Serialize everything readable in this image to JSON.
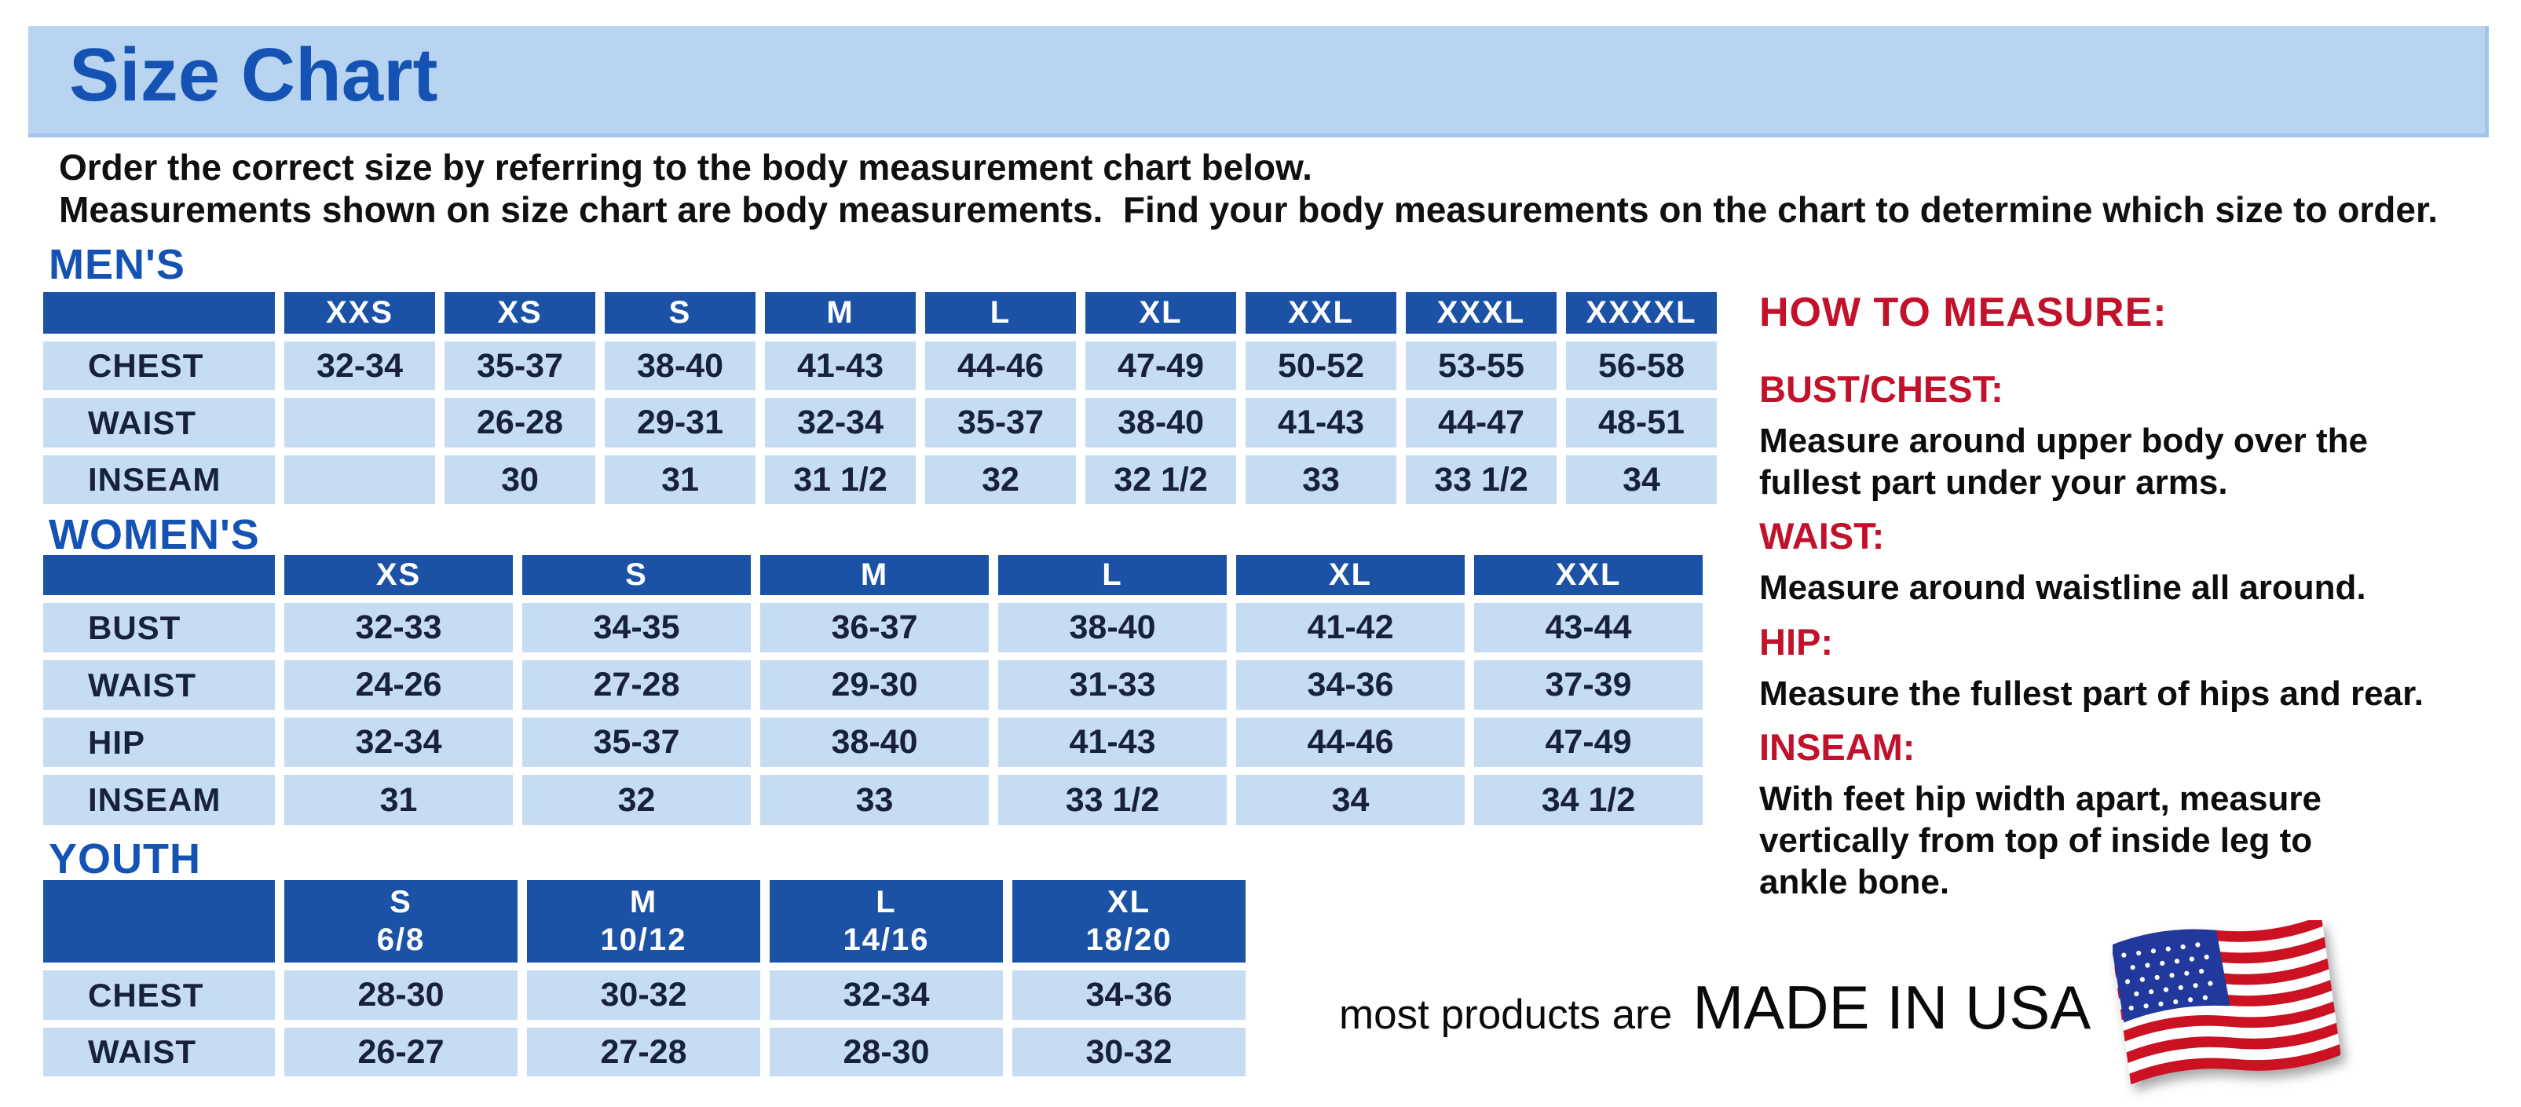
{
  "page": {
    "title": "Size Chart",
    "intro": [
      "Order the correct size by referring to the body measurement chart below.",
      "Measurements shown on size chart are body measurements.  Find your body measurements on the chart to determine which size to order."
    ]
  },
  "tables": {
    "mens": {
      "heading": "MEN'S",
      "columns": [
        "XXS",
        "XS",
        "S",
        "M",
        "L",
        "XL",
        "XXL",
        "XXXL",
        "XXXXL"
      ],
      "rows": [
        {
          "label": "CHEST",
          "values": [
            "32-34",
            "35-37",
            "38-40",
            "41-43",
            "44-46",
            "47-49",
            "50-52",
            "53-55",
            "56-58"
          ]
        },
        {
          "label": "WAIST",
          "values": [
            "",
            "26-28",
            "29-31",
            "32-34",
            "35-37",
            "38-40",
            "41-43",
            "44-47",
            "48-51"
          ]
        },
        {
          "label": "INSEAM",
          "values": [
            "",
            "30",
            "31",
            "31 1/2",
            "32",
            "32 1/2",
            "33",
            "33 1/2",
            "34"
          ]
        }
      ]
    },
    "womens": {
      "heading": "WOMEN'S",
      "columns": [
        "XS",
        "S",
        "M",
        "L",
        "XL",
        "XXL"
      ],
      "rows": [
        {
          "label": "BUST",
          "values": [
            "32-33",
            "34-35",
            "36-37",
            "38-40",
            "41-42",
            "43-44"
          ]
        },
        {
          "label": "WAIST",
          "values": [
            "24-26",
            "27-28",
            "29-30",
            "31-33",
            "34-36",
            "37-39"
          ]
        },
        {
          "label": "HIP",
          "values": [
            "32-34",
            "35-37",
            "38-40",
            "41-43",
            "44-46",
            "47-49"
          ]
        },
        {
          "label": "INSEAM",
          "values": [
            "31",
            "32",
            "33",
            "33 1/2",
            "34",
            "34 1/2"
          ]
        }
      ]
    },
    "youth": {
      "heading": "YOUTH",
      "columns": [
        [
          "S",
          "6/8"
        ],
        [
          "M",
          "10/12"
        ],
        [
          "L",
          "14/16"
        ],
        [
          "XL",
          "18/20"
        ]
      ],
      "rows": [
        {
          "label": "CHEST",
          "values": [
            "28-30",
            "30-32",
            "32-34",
            "34-36"
          ]
        },
        {
          "label": "WAIST",
          "values": [
            "26-27",
            "27-28",
            "28-30",
            "30-32"
          ]
        }
      ]
    }
  },
  "how_to_measure": {
    "heading": "HOW TO MEASURE:",
    "sections": [
      {
        "label": "BUST/CHEST:",
        "text": "Measure around upper body over the\nfullest part under your arms."
      },
      {
        "label": "WAIST:",
        "text": "Measure around waistline all around."
      },
      {
        "label": "HIP:",
        "text": "Measure the fullest part of hips and rear."
      },
      {
        "label": "INSEAM:",
        "text": "With feet hip width apart, measure\nvertically from top of inside leg to\nankle bone."
      }
    ]
  },
  "footer": {
    "prefix": "most products are",
    "made_in": "MADE IN USA",
    "flag_icon": "us-flag-icon"
  },
  "colors": {
    "banner_blue": "#b9d4f1",
    "heading_blue": "#1453b4",
    "table_header_blue": "#1c52a6",
    "cell_light_blue": "#c6dcf3",
    "value_navy": "#18213a",
    "accent_red": "#c2122b",
    "flag_red": "#cc1222",
    "flag_blue": "#21399c"
  }
}
